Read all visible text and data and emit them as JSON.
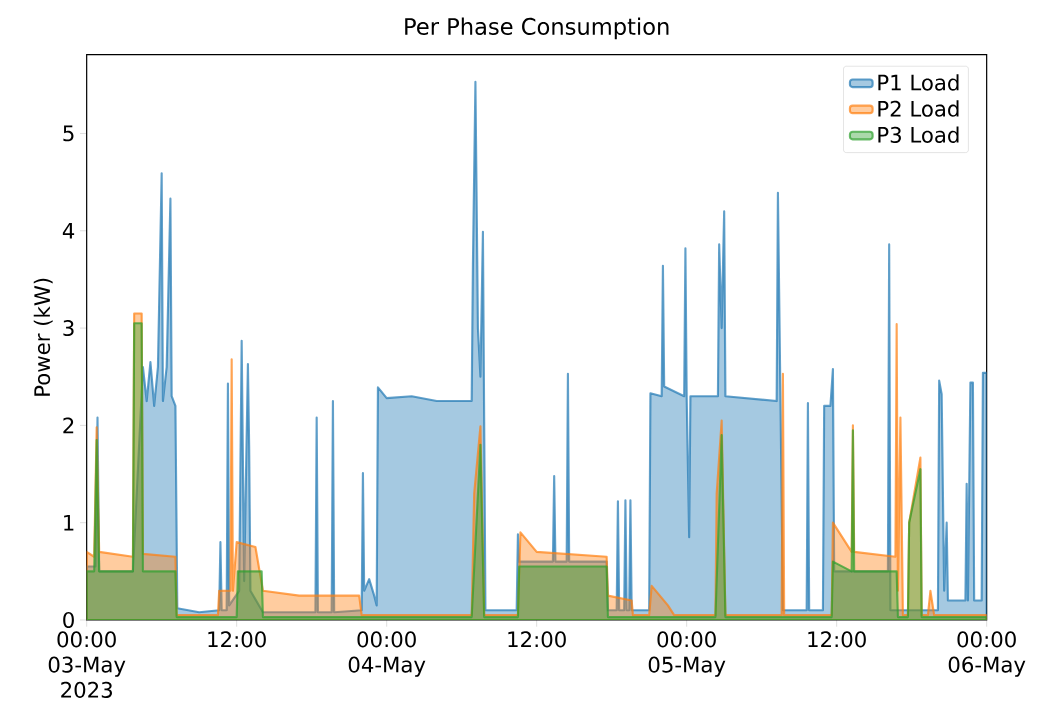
{
  "chart_data": {
    "type": "area",
    "title": "Per Phase Consumption",
    "ylabel": "Power (kW)",
    "xlim": [
      "2023-05-03T00:00",
      "2023-05-06T00:00"
    ],
    "xticks": [
      {
        "value": "2023-05-03T00:00",
        "label": "00:00 03-May 2023"
      },
      {
        "value": "2023-05-03T12:00",
        "label": "12:00"
      },
      {
        "value": "2023-05-04T00:00",
        "label": "00:00 04-May"
      },
      {
        "value": "2023-05-04T12:00",
        "label": "12:00"
      },
      {
        "value": "2023-05-05T00:00",
        "label": "00:00 05-May"
      },
      {
        "value": "2023-05-05T12:00",
        "label": "12:00"
      },
      {
        "value": "2023-05-06T00:00",
        "label": "00:00 06-May"
      }
    ],
    "ylim": [
      0,
      5.81
    ],
    "yticks": [
      0,
      1,
      2,
      3,
      4,
      5
    ],
    "legend": "top right",
    "series": [
      {
        "name": "P1 Load",
        "color": "#1f77b4",
        "x": [
          "2023-05-03T00:00",
          "2023-05-03T00:42",
          "2023-05-03T00:52",
          "2023-05-03T01:00",
          "2023-05-03T03:42",
          "2023-05-03T04:30",
          "2023-05-03T04:48",
          "2023-05-03T05:06",
          "2023-05-03T05:24",
          "2023-05-03T05:42",
          "2023-05-03T06:00",
          "2023-05-03T06:06",
          "2023-05-03T06:24",
          "2023-05-03T06:42",
          "2023-05-03T06:48",
          "2023-05-03T07:06",
          "2023-05-03T07:15",
          "2023-05-03T09:00",
          "2023-05-03T10:36",
          "2023-05-03T10:42",
          "2023-05-03T10:48",
          "2023-05-03T11:12",
          "2023-05-03T11:18",
          "2023-05-03T11:24",
          "2023-05-03T12:12",
          "2023-05-03T12:24",
          "2023-05-03T12:36",
          "2023-05-03T12:54",
          "2023-05-03T13:00",
          "2023-05-03T13:06",
          "2023-05-03T14:06",
          "2023-05-03T18:18",
          "2023-05-03T18:24",
          "2023-05-03T18:30",
          "2023-05-03T19:36",
          "2023-05-03T19:42",
          "2023-05-03T19:48",
          "2023-05-03T22:00",
          "2023-05-03T22:06",
          "2023-05-03T22:12",
          "2023-05-03T22:36",
          "2023-05-03T23:00",
          "2023-05-03T23:12",
          "2023-05-03T23:18",
          "2023-05-04T00:00",
          "2023-05-04T02:00",
          "2023-05-04T04:00",
          "2023-05-04T06:48",
          "2023-05-04T06:54",
          "2023-05-04T07:06",
          "2023-05-04T07:18",
          "2023-05-04T07:30",
          "2023-05-04T07:42",
          "2023-05-04T07:54",
          "2023-05-04T10:24",
          "2023-05-04T10:30",
          "2023-05-04T10:36",
          "2023-05-04T13:18",
          "2023-05-04T13:24",
          "2023-05-04T13:30",
          "2023-05-04T14:24",
          "2023-05-04T14:30",
          "2023-05-04T14:36",
          "2023-05-04T17:36",
          "2023-05-04T17:42",
          "2023-05-04T18:24",
          "2023-05-04T18:30",
          "2023-05-04T18:36",
          "2023-05-04T19:00",
          "2023-05-04T19:06",
          "2023-05-04T19:12",
          "2023-05-04T19:24",
          "2023-05-04T19:30",
          "2023-05-04T19:36",
          "2023-05-04T21:00",
          "2023-05-04T21:06",
          "2023-05-04T22:00",
          "2023-05-04T22:06",
          "2023-05-04T22:12",
          "2023-05-04T23:48",
          "2023-05-04T23:54",
          "2023-05-05T00:00",
          "2023-05-05T00:12",
          "2023-05-05T00:18",
          "2023-05-05T02:30",
          "2023-05-05T02:36",
          "2023-05-05T02:48",
          "2023-05-05T03:00",
          "2023-05-05T03:06",
          "2023-05-05T07:12",
          "2023-05-05T07:18",
          "2023-05-05T07:30",
          "2023-05-05T07:42",
          "2023-05-05T09:36",
          "2023-05-05T09:42",
          "2023-05-05T09:48",
          "2023-05-05T10:54",
          "2023-05-05T11:00",
          "2023-05-05T11:30",
          "2023-05-05T11:42",
          "2023-05-05T11:48",
          "2023-05-05T16:06",
          "2023-05-05T16:12",
          "2023-05-05T16:18",
          "2023-05-05T20:06",
          "2023-05-05T20:12",
          "2023-05-05T20:24",
          "2023-05-05T20:36",
          "2023-05-05T20:48",
          "2023-05-05T20:54",
          "2023-05-05T22:18",
          "2023-05-05T22:24",
          "2023-05-05T22:30",
          "2023-05-05T22:42",
          "2023-05-05T22:54",
          "2023-05-05T23:00",
          "2023-05-05T23:36",
          "2023-05-05T23:42",
          "2023-05-06T00:00"
        ],
        "values": [
          0.55,
          0.55,
          2.08,
          0.5,
          0.5,
          2.6,
          2.25,
          2.65,
          2.2,
          2.6,
          4.59,
          2.25,
          2.6,
          4.33,
          2.3,
          2.2,
          0.12,
          0.08,
          0.1,
          0.8,
          0.1,
          0.1,
          2.43,
          0.15,
          0.3,
          2.87,
          0.4,
          2.63,
          1.77,
          0.3,
          0.08,
          0.08,
          2.08,
          0.08,
          0.08,
          2.25,
          0.08,
          0.1,
          1.51,
          0.3,
          0.42,
          0.25,
          0.15,
          2.39,
          2.28,
          2.3,
          2.25,
          2.25,
          3.65,
          5.53,
          3.0,
          2.5,
          3.99,
          0.1,
          0.1,
          0.88,
          0.6,
          0.6,
          1.48,
          0.6,
          0.6,
          2.53,
          0.6,
          0.6,
          0.1,
          0.1,
          1.22,
          0.1,
          0.1,
          1.23,
          0.1,
          0.1,
          1.23,
          0.1,
          0.1,
          2.33,
          2.3,
          3.64,
          2.4,
          2.3,
          3.82,
          2.3,
          0.85,
          2.3,
          2.3,
          3.86,
          3.0,
          4.2,
          2.3,
          2.25,
          4.39,
          2.3,
          0.1,
          0.1,
          2.23,
          0.1,
          0.1,
          2.2,
          2.2,
          2.58,
          0.5,
          0.5,
          3.86,
          0.1,
          0.1,
          2.46,
          2.32,
          0.3,
          1.0,
          0.2,
          0.2,
          1.4,
          0.2,
          2.44,
          2.44,
          0.2,
          0.2,
          2.54,
          2.54
        ]
      },
      {
        "name": "P2 Load",
        "color": "#ff7f0e",
        "x": [
          "2023-05-03T00:00",
          "2023-05-03T00:36",
          "2023-05-03T00:48",
          "2023-05-03T01:00",
          "2023-05-03T03:42",
          "2023-05-03T03:48",
          "2023-05-03T04:24",
          "2023-05-03T04:30",
          "2023-05-03T07:06",
          "2023-05-03T07:12",
          "2023-05-03T10:30",
          "2023-05-03T10:36",
          "2023-05-03T11:30",
          "2023-05-03T11:36",
          "2023-05-03T11:42",
          "2023-05-03T12:00",
          "2023-05-03T13:30",
          "2023-05-03T14:06",
          "2023-05-03T17:00",
          "2023-05-03T21:48",
          "2023-05-03T22:00",
          "2023-05-04T06:48",
          "2023-05-04T07:00",
          "2023-05-04T07:30",
          "2023-05-04T07:48",
          "2023-05-04T10:30",
          "2023-05-04T10:42",
          "2023-05-04T12:00",
          "2023-05-04T17:36",
          "2023-05-04T17:42",
          "2023-05-04T19:36",
          "2023-05-04T19:42",
          "2023-05-04T21:00",
          "2023-05-04T21:12",
          "2023-05-04T22:30",
          "2023-05-04T23:00",
          "2023-05-05T02:18",
          "2023-05-05T02:24",
          "2023-05-05T02:48",
          "2023-05-05T03:06",
          "2023-05-05T07:36",
          "2023-05-05T07:42",
          "2023-05-05T07:48",
          "2023-05-05T11:36",
          "2023-05-05T11:42",
          "2023-05-05T13:12",
          "2023-05-05T13:18",
          "2023-05-05T13:24",
          "2023-05-05T16:42",
          "2023-05-05T16:48",
          "2023-05-05T16:54",
          "2023-05-05T17:06",
          "2023-05-05T17:18",
          "2023-05-05T17:42",
          "2023-05-05T17:48",
          "2023-05-05T18:42",
          "2023-05-05T18:48",
          "2023-05-05T19:18",
          "2023-05-05T19:30",
          "2023-05-05T19:48",
          "2023-05-06T00:00"
        ],
        "values": [
          0.7,
          0.65,
          1.98,
          0.7,
          0.65,
          3.15,
          3.15,
          0.68,
          0.65,
          0.05,
          0.05,
          0.3,
          0.3,
          2.68,
          0.3,
          0.8,
          0.75,
          0.3,
          0.25,
          0.25,
          0.05,
          0.05,
          1.3,
          1.99,
          0.05,
          0.05,
          0.9,
          0.7,
          0.65,
          0.25,
          0.2,
          0.05,
          0.05,
          0.35,
          0.15,
          0.05,
          0.05,
          1.3,
          2.05,
          0.05,
          0.05,
          2.53,
          0.05,
          0.05,
          1.0,
          0.7,
          2.0,
          0.7,
          0.65,
          3.04,
          0.3,
          2.08,
          0.05,
          0.05,
          1.0,
          1.67,
          0.05,
          0.05,
          0.3,
          0.05,
          0.05
        ]
      },
      {
        "name": "P3 Load",
        "color": "#2ca02c",
        "x": [
          "2023-05-03T00:00",
          "2023-05-03T00:36",
          "2023-05-03T00:48",
          "2023-05-03T01:00",
          "2023-05-03T03:42",
          "2023-05-03T03:48",
          "2023-05-03T04:24",
          "2023-05-03T04:30",
          "2023-05-03T07:06",
          "2023-05-03T07:12",
          "2023-05-03T12:00",
          "2023-05-03T12:06",
          "2023-05-03T14:00",
          "2023-05-03T14:06",
          "2023-05-04T06:48",
          "2023-05-04T07:30",
          "2023-05-04T07:48",
          "2023-05-04T10:30",
          "2023-05-04T10:36",
          "2023-05-04T17:36",
          "2023-05-04T17:42",
          "2023-05-05T02:18",
          "2023-05-05T02:48",
          "2023-05-05T03:06",
          "2023-05-05T11:36",
          "2023-05-05T11:42",
          "2023-05-05T13:12",
          "2023-05-05T13:18",
          "2023-05-05T13:24",
          "2023-05-05T16:48",
          "2023-05-05T16:54",
          "2023-05-05T17:42",
          "2023-05-05T17:48",
          "2023-05-05T18:42",
          "2023-05-05T18:48",
          "2023-05-06T00:00"
        ],
        "values": [
          0.5,
          0.5,
          1.85,
          0.5,
          0.5,
          3.05,
          3.05,
          0.5,
          0.5,
          0.03,
          0.03,
          0.5,
          0.5,
          0.03,
          0.03,
          1.8,
          0.03,
          0.03,
          0.55,
          0.55,
          0.03,
          0.03,
          1.9,
          0.03,
          0.03,
          0.6,
          0.5,
          1.95,
          0.5,
          0.5,
          0.03,
          0.03,
          1.0,
          1.55,
          0.03,
          0.03
        ]
      }
    ]
  }
}
